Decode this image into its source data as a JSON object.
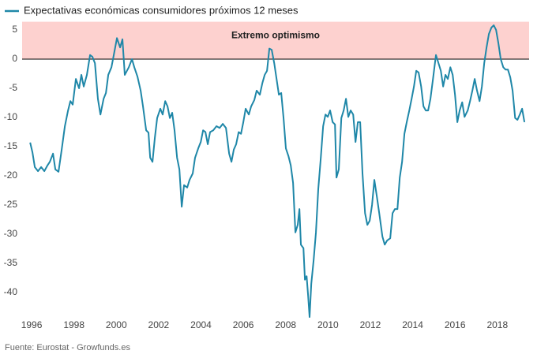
{
  "chart_data": {
    "type": "line",
    "legend_label": "Expectativas económicas consumidores próximos 12 meses",
    "source": "Fuente: Eurostat - Growfunds.es",
    "band": {
      "label": "Extremo optimismo",
      "from": 0,
      "to": 6.4,
      "color": "#fdd1cf"
    },
    "xlim": [
      1995.55,
      2019.5
    ],
    "xticks": [
      1996,
      1998,
      2000,
      2002,
      2004,
      2006,
      2008,
      2010,
      2012,
      2014,
      2016,
      2018
    ],
    "ylim": [
      -44.6,
      6.4
    ],
    "yticks": [
      5,
      0,
      -5,
      -10,
      -15,
      -20,
      -25,
      -30,
      -35,
      -40
    ],
    "grid": false,
    "series": [
      {
        "name": "Expectativas económicas consumidores próximos 12 meses",
        "color": "#1f87a8",
        "x": [
          1995.93,
          1996.04,
          1996.15,
          1996.3,
          1996.45,
          1996.6,
          1996.75,
          1996.86,
          1997.01,
          1997.12,
          1997.27,
          1997.42,
          1997.57,
          1997.72,
          1997.83,
          1997.94,
          1998.09,
          1998.24,
          1998.35,
          1998.46,
          1998.61,
          1998.76,
          1998.87,
          1998.99,
          1999.13,
          1999.25,
          1999.4,
          1999.51,
          1999.62,
          1999.77,
          1999.88,
          2000.03,
          2000.18,
          2000.29,
          2000.4,
          2000.59,
          2000.74,
          2000.85,
          2001.0,
          2001.15,
          2001.26,
          2001.41,
          2001.52,
          2001.6,
          2001.71,
          2001.82,
          2001.93,
          2002.08,
          2002.19,
          2002.31,
          2002.42,
          2002.53,
          2002.64,
          2002.75,
          2002.87,
          2002.98,
          2003.09,
          2003.2,
          2003.35,
          2003.46,
          2003.61,
          2003.72,
          2003.87,
          2003.99,
          2004.1,
          2004.21,
          2004.32,
          2004.43,
          2004.58,
          2004.73,
          2004.88,
          2005.03,
          2005.18,
          2005.33,
          2005.44,
          2005.55,
          2005.66,
          2005.78,
          2005.89,
          2006.0,
          2006.11,
          2006.26,
          2006.37,
          2006.52,
          2006.63,
          2006.78,
          2006.9,
          2007.01,
          2007.12,
          2007.23,
          2007.34,
          2007.46,
          2007.57,
          2007.68,
          2007.79,
          2007.9,
          2008.01,
          2008.13,
          2008.24,
          2008.35,
          2008.46,
          2008.57,
          2008.65,
          2008.72,
          2008.84,
          2008.91,
          2008.99,
          2009.06,
          2009.13,
          2009.21,
          2009.32,
          2009.43,
          2009.54,
          2009.66,
          2009.77,
          2009.88,
          2009.99,
          2010.1,
          2010.22,
          2010.33,
          2010.4,
          2010.51,
          2010.63,
          2010.74,
          2010.85,
          2010.96,
          2011.07,
          2011.19,
          2011.3,
          2011.41,
          2011.52,
          2011.63,
          2011.75,
          2011.86,
          2011.97,
          2012.08,
          2012.19,
          2012.31,
          2012.42,
          2012.57,
          2012.68,
          2012.79,
          2012.94,
          2013.05,
          2013.16,
          2013.28,
          2013.39,
          2013.5,
          2013.61,
          2013.72,
          2013.84,
          2013.95,
          2014.06,
          2014.17,
          2014.28,
          2014.4,
          2014.51,
          2014.62,
          2014.73,
          2014.84,
          2014.96,
          2015.1,
          2015.22,
          2015.33,
          2015.44,
          2015.55,
          2015.66,
          2015.78,
          2015.89,
          2016.0,
          2016.11,
          2016.22,
          2016.34,
          2016.45,
          2016.6,
          2016.71,
          2016.82,
          2016.93,
          2017.04,
          2017.16,
          2017.27,
          2017.38,
          2017.49,
          2017.6,
          2017.72,
          2017.83,
          2017.94,
          2018.05,
          2018.16,
          2018.28,
          2018.39,
          2018.5,
          2018.61,
          2018.72,
          2018.84,
          2018.95,
          2019.06,
          2019.17,
          2019.28
        ],
        "values": [
          -14.3,
          -16,
          -18.5,
          -19.2,
          -18.5,
          -19.2,
          -18.2,
          -17.6,
          -16.2,
          -18.9,
          -19.3,
          -15.5,
          -11.5,
          -8.8,
          -7.2,
          -7.8,
          -3.4,
          -5,
          -2.7,
          -4.7,
          -2.7,
          0.7,
          0.4,
          -0.7,
          -6.8,
          -9.5,
          -6.8,
          -5.8,
          -2.7,
          -1.4,
          0.7,
          3.6,
          2,
          3.4,
          -2.7,
          -1.4,
          0,
          -1.4,
          -3,
          -5.4,
          -8.1,
          -12.2,
          -12.6,
          -16.9,
          -17.6,
          -13.5,
          -10.1,
          -8.5,
          -9.5,
          -7.2,
          -8.1,
          -10.1,
          -9.2,
          -12.2,
          -16.9,
          -18.9,
          -25.3,
          -21.6,
          -22,
          -20.7,
          -19.6,
          -16.9,
          -15.3,
          -14.2,
          -12.2,
          -12.5,
          -14.6,
          -12.5,
          -12.2,
          -11.5,
          -11.8,
          -11.1,
          -11.8,
          -16.2,
          -17.6,
          -15.5,
          -14.6,
          -12.5,
          -12.8,
          -10.8,
          -8.5,
          -9.5,
          -8.1,
          -7,
          -5.4,
          -6.1,
          -4.1,
          -2.7,
          -2,
          1.8,
          1.6,
          -0.7,
          -3.4,
          -6.1,
          -5.8,
          -10.1,
          -15.3,
          -16.6,
          -18.2,
          -21.2,
          -29.7,
          -28.4,
          -25.7,
          -31.8,
          -32.4,
          -37.8,
          -37.2,
          -40.5,
          -44.2,
          -38.5,
          -34.5,
          -29.7,
          -22.3,
          -16.9,
          -11.5,
          -9.5,
          -9.9,
          -8.8,
          -10.8,
          -11.2,
          -20.3,
          -18.9,
          -10.1,
          -8.8,
          -6.8,
          -9.9,
          -8.8,
          -9.5,
          -14.2,
          -10.8,
          -10.8,
          -19.6,
          -26.4,
          -28.4,
          -27.7,
          -25,
          -20.7,
          -23.6,
          -26.4,
          -30.4,
          -31.8,
          -31.1,
          -30.7,
          -26.4,
          -25.7,
          -25.7,
          -20.3,
          -17.6,
          -12.8,
          -10.8,
          -8.8,
          -6.8,
          -4.7,
          -2,
          -2.3,
          -4.7,
          -8.1,
          -8.8,
          -8.8,
          -6.8,
          -3.4,
          0.7,
          -0.7,
          -2,
          -4.7,
          -2.7,
          -3.4,
          -1.4,
          -2.7,
          -6.1,
          -10.8,
          -8.8,
          -7.4,
          -9.9,
          -8.8,
          -7.2,
          -5.4,
          -3.4,
          -5.4,
          -7.2,
          -4.7,
          -0.7,
          2,
          4.3,
          5.4,
          5.8,
          5,
          2.7,
          0,
          -1.4,
          -1.8,
          -1.8,
          -3.1,
          -5.4,
          -10.1,
          -10.4,
          -9.5,
          -8.5,
          -10.8
        ]
      }
    ]
  }
}
